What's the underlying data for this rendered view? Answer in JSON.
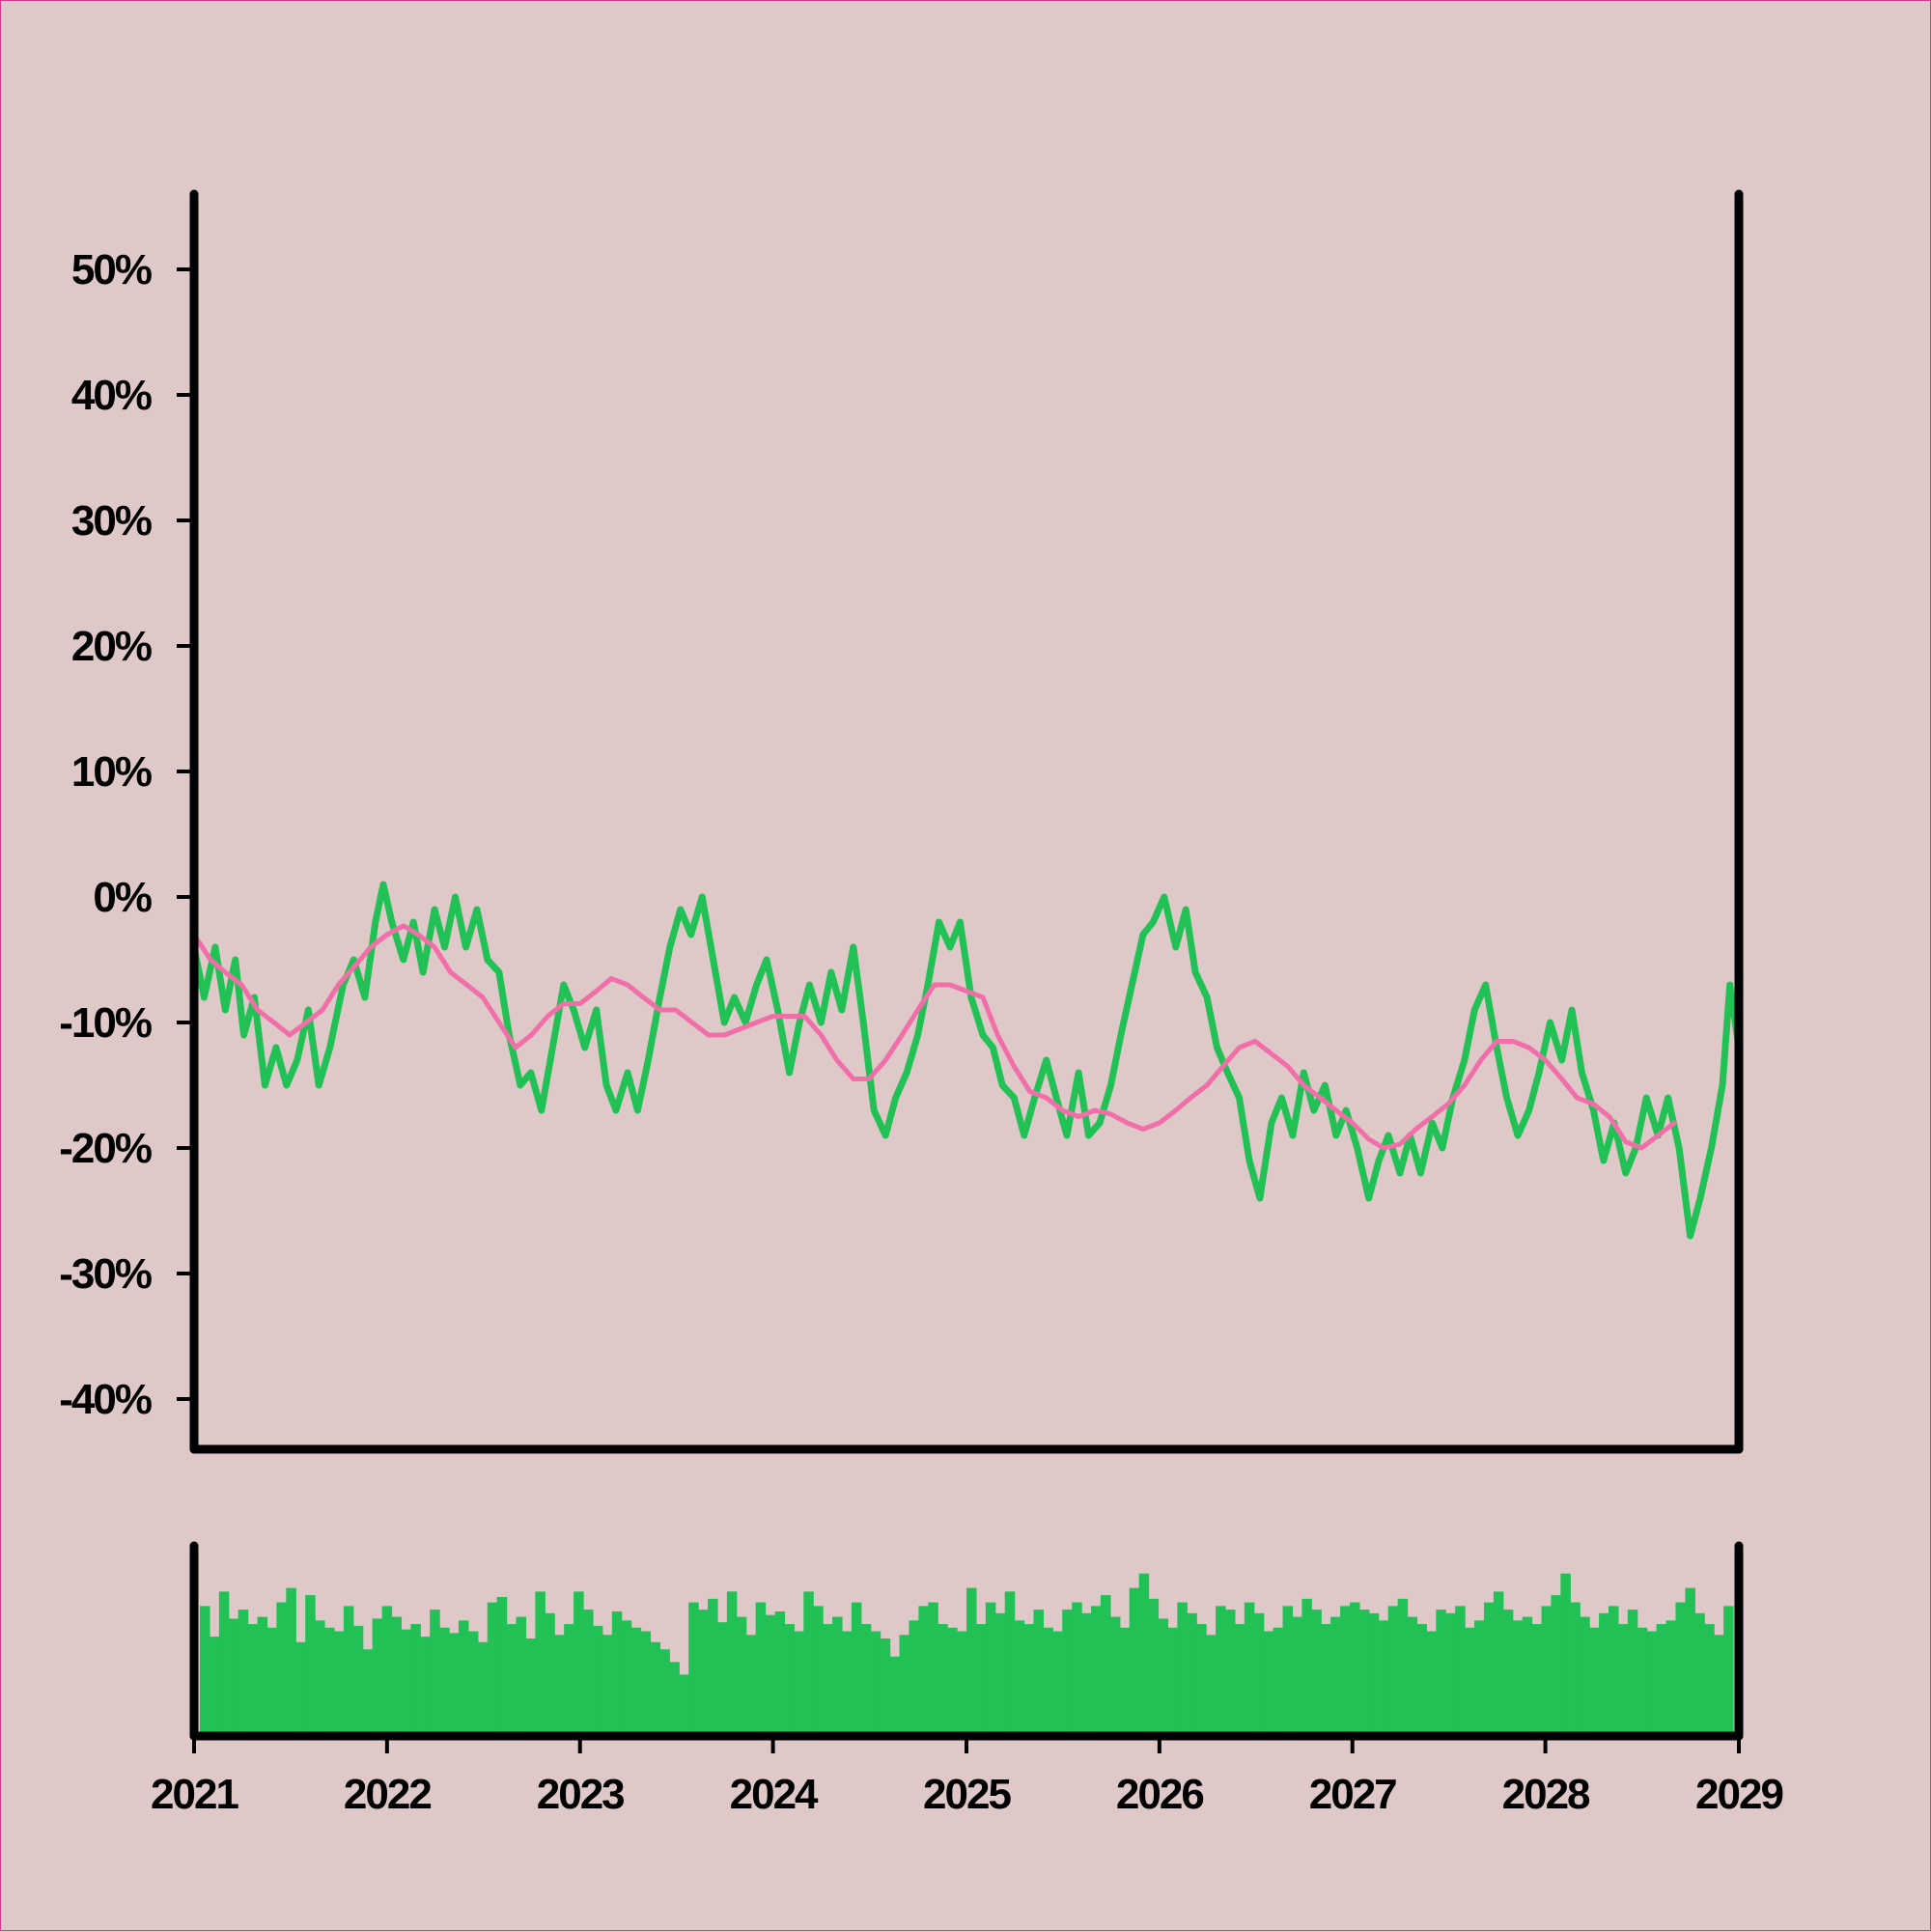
{
  "chart_data": {
    "type": "line",
    "x_axis": {
      "type": "date",
      "range": [
        "2021-01-01",
        "2029-01-01"
      ],
      "tick_labels": [
        "2021",
        "2022",
        "2023",
        "2024",
        "2025",
        "2026",
        "2027",
        "2028",
        "2029"
      ]
    },
    "y_axis": {
      "range": [
        -44,
        56
      ],
      "ticks": [
        50,
        40,
        30,
        20,
        10,
        0,
        -10,
        -20,
        -30,
        -40
      ],
      "tick_labels": [
        "50%",
        "40%",
        "30%",
        "20%",
        "10%",
        "0%",
        "-10%",
        "-20%",
        "-30%",
        "-40%"
      ],
      "unit": "%"
    },
    "grid": false,
    "legend": "none",
    "colors": {
      "price": "#22c155",
      "moving_average": "#f06fa8",
      "volume": "#22c155",
      "background": "#dfc8c8",
      "axis": "#000000"
    },
    "series": [
      {
        "role": "price",
        "points": [
          [
            "2021-01-01",
            -4
          ],
          [
            "2021-01-20",
            -8
          ],
          [
            "2021-02-10",
            -4
          ],
          [
            "2021-03-01",
            -9
          ],
          [
            "2021-03-20",
            -5
          ],
          [
            "2021-04-05",
            -11
          ],
          [
            "2021-04-25",
            -8
          ],
          [
            "2021-05-15",
            -15
          ],
          [
            "2021-06-05",
            -12
          ],
          [
            "2021-06-25",
            -15
          ],
          [
            "2021-07-15",
            -13
          ],
          [
            "2021-08-05",
            -9
          ],
          [
            "2021-08-25",
            -15
          ],
          [
            "2021-09-15",
            -12
          ],
          [
            "2021-10-10",
            -7
          ],
          [
            "2021-10-30",
            -5
          ],
          [
            "2021-11-20",
            -8
          ],
          [
            "2021-12-10",
            -2
          ],
          [
            "2021-12-25",
            1
          ],
          [
            "2022-01-10",
            -2
          ],
          [
            "2022-02-01",
            -5
          ],
          [
            "2022-02-20",
            -2
          ],
          [
            "2022-03-10",
            -6
          ],
          [
            "2022-04-01",
            -1
          ],
          [
            "2022-04-20",
            -4
          ],
          [
            "2022-05-10",
            0
          ],
          [
            "2022-05-30",
            -4
          ],
          [
            "2022-06-20",
            -1
          ],
          [
            "2022-07-10",
            -5
          ],
          [
            "2022-08-01",
            -6
          ],
          [
            "2022-08-20",
            -11
          ],
          [
            "2022-09-10",
            -15
          ],
          [
            "2022-09-30",
            -14
          ],
          [
            "2022-10-20",
            -17
          ],
          [
            "2022-11-10",
            -12
          ],
          [
            "2022-12-01",
            -7
          ],
          [
            "2022-12-20",
            -9
          ],
          [
            "2023-01-10",
            -12
          ],
          [
            "2023-02-01",
            -9
          ],
          [
            "2023-02-20",
            -15
          ],
          [
            "2023-03-10",
            -17
          ],
          [
            "2023-04-01",
            -14
          ],
          [
            "2023-04-20",
            -17
          ],
          [
            "2023-05-10",
            -13
          ],
          [
            "2023-06-01",
            -8
          ],
          [
            "2023-06-20",
            -4
          ],
          [
            "2023-07-10",
            -1
          ],
          [
            "2023-07-30",
            -3
          ],
          [
            "2023-08-20",
            0
          ],
          [
            "2023-09-10",
            -5
          ],
          [
            "2023-10-01",
            -10
          ],
          [
            "2023-10-20",
            -8
          ],
          [
            "2023-11-10",
            -10
          ],
          [
            "2023-12-01",
            -7
          ],
          [
            "2023-12-20",
            -5
          ],
          [
            "2024-01-10",
            -9
          ],
          [
            "2024-02-01",
            -14
          ],
          [
            "2024-02-20",
            -10
          ],
          [
            "2024-03-10",
            -7
          ],
          [
            "2024-04-01",
            -10
          ],
          [
            "2024-04-20",
            -6
          ],
          [
            "2024-05-10",
            -9
          ],
          [
            "2024-06-01",
            -4
          ],
          [
            "2024-06-20",
            -10
          ],
          [
            "2024-07-10",
            -17
          ],
          [
            "2024-08-01",
            -19
          ],
          [
            "2024-08-20",
            -16
          ],
          [
            "2024-09-10",
            -14
          ],
          [
            "2024-10-01",
            -11
          ],
          [
            "2024-10-20",
            -7
          ],
          [
            "2024-11-10",
            -2
          ],
          [
            "2024-12-01",
            -4
          ],
          [
            "2024-12-20",
            -2
          ],
          [
            "2025-01-10",
            -8
          ],
          [
            "2025-02-01",
            -11
          ],
          [
            "2025-02-20",
            -12
          ],
          [
            "2025-03-10",
            -15
          ],
          [
            "2025-04-01",
            -16
          ],
          [
            "2025-04-20",
            -19
          ],
          [
            "2025-05-10",
            -16
          ],
          [
            "2025-06-01",
            -13
          ],
          [
            "2025-06-20",
            -16
          ],
          [
            "2025-07-10",
            -19
          ],
          [
            "2025-08-01",
            -14
          ],
          [
            "2025-08-20",
            -19
          ],
          [
            "2025-09-10",
            -18
          ],
          [
            "2025-10-01",
            -15
          ],
          [
            "2025-10-20",
            -11
          ],
          [
            "2025-11-10",
            -7
          ],
          [
            "2025-12-01",
            -3
          ],
          [
            "2025-12-20",
            -2
          ],
          [
            "2026-01-10",
            0
          ],
          [
            "2026-02-01",
            -4
          ],
          [
            "2026-02-20",
            -1
          ],
          [
            "2026-03-10",
            -6
          ],
          [
            "2026-04-01",
            -8
          ],
          [
            "2026-04-20",
            -12
          ],
          [
            "2026-05-10",
            -14
          ],
          [
            "2026-06-01",
            -16
          ],
          [
            "2026-06-20",
            -21
          ],
          [
            "2026-07-10",
            -24
          ],
          [
            "2026-08-01",
            -18
          ],
          [
            "2026-08-20",
            -16
          ],
          [
            "2026-09-10",
            -19
          ],
          [
            "2026-10-01",
            -14
          ],
          [
            "2026-10-20",
            -17
          ],
          [
            "2026-11-10",
            -15
          ],
          [
            "2026-12-01",
            -19
          ],
          [
            "2026-12-20",
            -17
          ],
          [
            "2027-01-10",
            -20
          ],
          [
            "2027-02-01",
            -24
          ],
          [
            "2027-02-20",
            -21
          ],
          [
            "2027-03-10",
            -19
          ],
          [
            "2027-04-01",
            -22
          ],
          [
            "2027-04-20",
            -19
          ],
          [
            "2027-05-10",
            -22
          ],
          [
            "2027-06-01",
            -18
          ],
          [
            "2027-06-20",
            -20
          ],
          [
            "2027-07-10",
            -16
          ],
          [
            "2027-08-01",
            -13
          ],
          [
            "2027-08-20",
            -9
          ],
          [
            "2027-09-10",
            -7
          ],
          [
            "2027-10-01",
            -12
          ],
          [
            "2027-10-20",
            -16
          ],
          [
            "2027-11-10",
            -19
          ],
          [
            "2027-12-01",
            -17
          ],
          [
            "2027-12-20",
            -14
          ],
          [
            "2028-01-10",
            -10
          ],
          [
            "2028-02-01",
            -13
          ],
          [
            "2028-02-20",
            -9
          ],
          [
            "2028-03-10",
            -14
          ],
          [
            "2028-04-01",
            -17
          ],
          [
            "2028-04-20",
            -21
          ],
          [
            "2028-05-10",
            -18
          ],
          [
            "2028-06-01",
            -22
          ],
          [
            "2028-06-20",
            -20
          ],
          [
            "2028-07-10",
            -16
          ],
          [
            "2028-08-01",
            -19
          ],
          [
            "2028-08-20",
            -16
          ],
          [
            "2028-09-10",
            -20
          ],
          [
            "2028-10-01",
            -27
          ],
          [
            "2028-10-20",
            -24
          ],
          [
            "2028-11-10",
            -20
          ],
          [
            "2028-12-01",
            -15
          ],
          [
            "2028-12-15",
            -7
          ],
          [
            "2029-01-01",
            -12
          ]
        ]
      },
      {
        "role": "moving_average",
        "points": [
          [
            "2021-01-01",
            -3
          ],
          [
            "2021-02-01",
            -5
          ],
          [
            "2021-03-01",
            -6
          ],
          [
            "2021-04-01",
            -7
          ],
          [
            "2021-05-01",
            -9
          ],
          [
            "2021-06-01",
            -10
          ],
          [
            "2021-07-01",
            -11
          ],
          [
            "2021-08-01",
            -10
          ],
          [
            "2021-09-01",
            -9
          ],
          [
            "2021-10-01",
            -7
          ],
          [
            "2021-11-01",
            -5.5
          ],
          [
            "2021-12-01",
            -4
          ],
          [
            "2022-01-01",
            -3
          ],
          [
            "2022-02-01",
            -2.3
          ],
          [
            "2022-03-01",
            -3
          ],
          [
            "2022-04-01",
            -4
          ],
          [
            "2022-05-01",
            -6
          ],
          [
            "2022-06-01",
            -7
          ],
          [
            "2022-07-01",
            -8
          ],
          [
            "2022-08-01",
            -10
          ],
          [
            "2022-09-01",
            -12
          ],
          [
            "2022-10-01",
            -11
          ],
          [
            "2022-11-01",
            -9.5
          ],
          [
            "2022-12-01",
            -8.5
          ],
          [
            "2023-01-01",
            -8.5
          ],
          [
            "2023-02-01",
            -7.5
          ],
          [
            "2023-03-01",
            -6.5
          ],
          [
            "2023-04-01",
            -7
          ],
          [
            "2023-05-01",
            -8
          ],
          [
            "2023-06-01",
            -9
          ],
          [
            "2023-07-01",
            -9
          ],
          [
            "2023-08-01",
            -10
          ],
          [
            "2023-09-01",
            -11
          ],
          [
            "2023-10-01",
            -11
          ],
          [
            "2023-11-01",
            -10.5
          ],
          [
            "2023-12-01",
            -10
          ],
          [
            "2024-01-01",
            -9.5
          ],
          [
            "2024-02-01",
            -9.5
          ],
          [
            "2024-03-01",
            -9.5
          ],
          [
            "2024-04-01",
            -11
          ],
          [
            "2024-05-01",
            -13
          ],
          [
            "2024-06-01",
            -14.5
          ],
          [
            "2024-07-01",
            -14.5
          ],
          [
            "2024-08-01",
            -13
          ],
          [
            "2024-09-01",
            -11
          ],
          [
            "2024-10-01",
            -9
          ],
          [
            "2024-11-01",
            -7
          ],
          [
            "2024-12-01",
            -7
          ],
          [
            "2025-01-01",
            -7.5
          ],
          [
            "2025-02-01",
            -8
          ],
          [
            "2025-03-01",
            -11
          ],
          [
            "2025-04-01",
            -13.5
          ],
          [
            "2025-05-01",
            -15.5
          ],
          [
            "2025-06-01",
            -16
          ],
          [
            "2025-07-01",
            -17
          ],
          [
            "2025-08-01",
            -17.5
          ],
          [
            "2025-09-01",
            -17
          ],
          [
            "2025-10-01",
            -17.3
          ],
          [
            "2025-11-01",
            -18
          ],
          [
            "2025-12-01",
            -18.5
          ],
          [
            "2026-01-01",
            -18
          ],
          [
            "2026-02-01",
            -17
          ],
          [
            "2026-03-01",
            -16
          ],
          [
            "2026-04-01",
            -15
          ],
          [
            "2026-05-01",
            -13.5
          ],
          [
            "2026-06-01",
            -12
          ],
          [
            "2026-07-01",
            -11.5
          ],
          [
            "2026-08-01",
            -12.5
          ],
          [
            "2026-09-01",
            -13.5
          ],
          [
            "2026-10-01",
            -15
          ],
          [
            "2026-11-01",
            -16
          ],
          [
            "2026-12-01",
            -17
          ],
          [
            "2027-01-01",
            -18
          ],
          [
            "2027-02-01",
            -19.3
          ],
          [
            "2027-03-01",
            -20
          ],
          [
            "2027-04-01",
            -19.7
          ],
          [
            "2027-05-01",
            -18.5
          ],
          [
            "2027-06-01",
            -17.5
          ],
          [
            "2027-07-01",
            -16.5
          ],
          [
            "2027-08-01",
            -15
          ],
          [
            "2027-09-01",
            -13
          ],
          [
            "2027-10-01",
            -11.5
          ],
          [
            "2027-11-01",
            -11.5
          ],
          [
            "2027-12-01",
            -12
          ],
          [
            "2028-01-01",
            -13
          ],
          [
            "2028-02-01",
            -14.5
          ],
          [
            "2028-03-01",
            -16
          ],
          [
            "2028-04-01",
            -16.5
          ],
          [
            "2028-05-01",
            -17.5
          ],
          [
            "2028-06-01",
            -19.5
          ],
          [
            "2028-07-01",
            -20
          ],
          [
            "2028-08-01",
            -19
          ],
          [
            "2028-09-01",
            -18
          ]
        ]
      }
    ],
    "volume": {
      "type": "bar",
      "shares_x_axis": true,
      "y_range": [
        0,
        100
      ],
      "values": [
        72,
        55,
        80,
        65,
        70,
        62,
        66,
        60,
        74,
        82,
        52,
        78,
        64,
        60,
        58,
        72,
        61,
        48,
        65,
        72,
        66,
        59,
        62,
        55,
        70,
        60,
        57,
        64,
        58,
        52,
        74,
        77,
        62,
        66,
        54,
        80,
        68,
        56,
        62,
        80,
        70,
        61,
        56,
        69,
        64,
        60,
        58,
        52,
        48,
        41,
        34,
        74,
        70,
        76,
        63,
        80,
        66,
        56,
        74,
        67,
        69,
        62,
        58,
        80,
        72,
        62,
        66,
        58,
        74,
        62,
        58,
        54,
        44,
        56,
        64,
        72,
        74,
        62,
        60,
        58,
        82,
        62,
        74,
        68,
        80,
        64,
        62,
        70,
        60,
        58,
        70,
        74,
        68,
        72,
        78,
        66,
        60,
        82,
        90,
        76,
        65,
        60,
        74,
        68,
        62,
        56,
        72,
        70,
        62,
        74,
        68,
        58,
        60,
        72,
        66,
        76,
        70,
        62,
        66,
        72,
        74,
        70,
        68,
        64,
        72,
        76,
        66,
        62,
        58,
        70,
        68,
        72,
        60,
        64,
        74,
        80,
        70,
        64,
        66,
        62,
        72,
        78,
        90,
        74,
        66,
        60,
        68,
        72,
        62,
        70,
        60,
        58,
        62,
        64,
        74,
        82,
        68,
        62,
        56,
        72
      ]
    }
  }
}
